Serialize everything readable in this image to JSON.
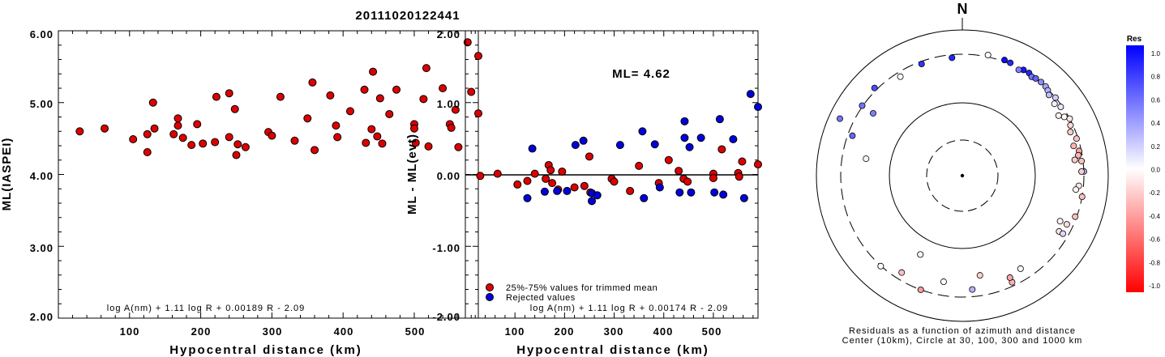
{
  "title": "20111020122441",
  "chart_data": [
    {
      "type": "scatter",
      "xlabel": "Hypocentral distance (km)",
      "ylabel": "ML(IASPEI)",
      "xlim": [
        0,
        590
      ],
      "ylim": [
        2.0,
        6.0
      ],
      "xticks": [
        "100",
        "200",
        "300",
        "400",
        "500"
      ],
      "yticks": [
        "2.00",
        "3.00",
        "4.00",
        "5.00",
        "6.00"
      ],
      "formula": "log A(nm) + 1.11 log R + 0.00189 R - 2.09",
      "point_color": "#dd0000",
      "points": [
        [
          30,
          4.6
        ],
        [
          65,
          4.64
        ],
        [
          105,
          4.49
        ],
        [
          125,
          4.31
        ],
        [
          125,
          4.56
        ],
        [
          133,
          5.0
        ],
        [
          135,
          4.64
        ],
        [
          162,
          4.56
        ],
        [
          168,
          4.68
        ],
        [
          168,
          4.78
        ],
        [
          175,
          4.51
        ],
        [
          187,
          4.41
        ],
        [
          195,
          4.7
        ],
        [
          203,
          4.43
        ],
        [
          220,
          4.45
        ],
        [
          222,
          5.08
        ],
        [
          240,
          5.13
        ],
        [
          240,
          4.52
        ],
        [
          248,
          4.91
        ],
        [
          250,
          4.27
        ],
        [
          252,
          4.42
        ],
        [
          263,
          4.38
        ],
        [
          295,
          4.59
        ],
        [
          300,
          4.54
        ],
        [
          312,
          5.08
        ],
        [
          332,
          4.47
        ],
        [
          350,
          4.78
        ],
        [
          357,
          5.28
        ],
        [
          360,
          4.34
        ],
        [
          382,
          5.1
        ],
        [
          390,
          4.68
        ],
        [
          392,
          4.52
        ],
        [
          410,
          4.88
        ],
        [
          430,
          5.18
        ],
        [
          432,
          4.44
        ],
        [
          440,
          4.63
        ],
        [
          442,
          5.43
        ],
        [
          448,
          4.53
        ],
        [
          452,
          5.06
        ],
        [
          455,
          4.43
        ],
        [
          465,
          4.84
        ],
        [
          475,
          5.18
        ],
        [
          500,
          4.7
        ],
        [
          500,
          4.64
        ],
        [
          502,
          4.44
        ],
        [
          513,
          5.05
        ],
        [
          517,
          5.48
        ],
        [
          520,
          4.39
        ],
        [
          540,
          5.2
        ],
        [
          550,
          4.7
        ],
        [
          552,
          4.65
        ],
        [
          558,
          4.9
        ],
        [
          562,
          4.38
        ],
        [
          575,
          5.84
        ],
        [
          580,
          5.15
        ],
        [
          590,
          5.65
        ],
        [
          590,
          4.85
        ]
      ]
    },
    {
      "type": "scatter",
      "xlabel": "Hypocentral distance (km)",
      "ylabel": "ML - ML(evt)",
      "xlim": [
        0,
        590
      ],
      "ylim": [
        -2.0,
        2.0
      ],
      "xticks": [
        "100",
        "200",
        "300",
        "400",
        "500"
      ],
      "yticks": [
        "-2.00",
        "-1.00",
        "0.00",
        "1.00",
        "2.00"
      ],
      "annotation": "ML= 4.62",
      "formula": "log A(nm) + 1.11 log R + 0.00174 R - 2.09",
      "legend_placement": "bottom-left",
      "series": [
        {
          "name": "25%-75% values for trimmed mean",
          "color": "#dd0000",
          "points": [
            [
              30,
              -0.02
            ],
            [
              65,
              0.01
            ],
            [
              105,
              -0.14
            ],
            [
              125,
              -0.09
            ],
            [
              140,
              0.01
            ],
            [
              162,
              -0.06
            ],
            [
              168,
              0.13
            ],
            [
              172,
              0.06
            ],
            [
              175,
              -0.12
            ],
            [
              187,
              -0.21
            ],
            [
              195,
              0.04
            ],
            [
              220,
              -0.18
            ],
            [
              240,
              -0.16
            ],
            [
              250,
              0.25
            ],
            [
              252,
              -0.25
            ],
            [
              295,
              -0.06
            ],
            [
              300,
              -0.1
            ],
            [
              332,
              -0.23
            ],
            [
              350,
              0.12
            ],
            [
              390,
              -0.12
            ],
            [
              410,
              0.2
            ],
            [
              430,
              0.05
            ],
            [
              440,
              -0.06
            ],
            [
              448,
              -0.1
            ],
            [
              500,
              0.01
            ],
            [
              500,
              -0.05
            ],
            [
              517,
              0.35
            ],
            [
              550,
              0.02
            ],
            [
              552,
              -0.03
            ],
            [
              558,
              0.18
            ],
            [
              590,
              0.14
            ]
          ]
        },
        {
          "name": "Rejected values",
          "color": "#0000dd",
          "points": [
            [
              125,
              -0.33
            ],
            [
              135,
              0.36
            ],
            [
              160,
              -0.24
            ],
            [
              185,
              -0.23
            ],
            [
              205,
              -0.23
            ],
            [
              222,
              0.41
            ],
            [
              238,
              0.47
            ],
            [
              255,
              -0.26
            ],
            [
              255,
              -0.37
            ],
            [
              266,
              -0.29
            ],
            [
              312,
              0.41
            ],
            [
              357,
              0.6
            ],
            [
              360,
              -0.33
            ],
            [
              382,
              0.42
            ],
            [
              392,
              -0.18
            ],
            [
              432,
              -0.25
            ],
            [
              442,
              0.74
            ],
            [
              442,
              0.51
            ],
            [
              452,
              0.38
            ],
            [
              455,
              -0.25
            ],
            [
              475,
              0.51
            ],
            [
              502,
              -0.25
            ],
            [
              513,
              0.77
            ],
            [
              520,
              -0.28
            ],
            [
              540,
              0.49
            ],
            [
              562,
              -0.33
            ],
            [
              575,
              1.12
            ],
            [
              590,
              0.94
            ]
          ]
        }
      ]
    },
    {
      "type": "scatter",
      "north_label": "N",
      "caption_line1": "Residuals as a function of azimuth and distance",
      "caption_line2": "Center (10km), Circle at 30, 100, 300 and 1000 km",
      "colorbar_title": "Res",
      "colorbar_ticks": [
        "1.0",
        "0.8",
        "0.6",
        "0.4",
        "0.2",
        "0.0",
        "-0.2",
        "-0.4",
        "-0.6",
        "-0.8",
        "-1.0"
      ],
      "points": [
        [
          12,
          330,
          0.02
        ],
        [
          328,
          270,
          -0.02
        ],
        [
          208,
          145,
          0.02
        ],
        [
          170,
          190,
          -0.18
        ],
        [
          280,
          175,
          0.05
        ],
        [
          305,
          310,
          0.55
        ],
        [
          305,
          225,
          0.5
        ],
        [
          20,
          325,
          0.95
        ],
        [
          23,
          318,
          0.85
        ],
        [
          30,
          310,
          0.9
        ],
        [
          33,
          315,
          0.85
        ],
        [
          28,
          290,
          0.5
        ],
        [
          35,
          295,
          0.55
        ],
        [
          37,
          305,
          0.6
        ],
        [
          40,
          312,
          0.45
        ],
        [
          43,
          308,
          0.35
        ],
        [
          45,
          295,
          0.3
        ],
        [
          47,
          280,
          0.25
        ],
        [
          50,
          300,
          0.2
        ],
        [
          55,
          290,
          0.1
        ],
        [
          52,
          270,
          0.05
        ],
        [
          60,
          275,
          0.0
        ],
        [
          58,
          250,
          -0.05
        ],
        [
          62,
          300,
          -0.1
        ],
        [
          65,
          285,
          -0.15
        ],
        [
          68,
          268,
          -0.2
        ],
        [
          72,
          290,
          -0.25
        ],
        [
          75,
          260,
          -0.3
        ],
        [
          78,
          285,
          -0.35
        ],
        [
          80,
          275,
          -0.3
        ],
        [
          83,
          290,
          -0.25
        ],
        [
          88,
          300,
          0.3
        ],
        [
          88,
          285,
          -0.2
        ],
        [
          100,
          300,
          -0.25
        ],
        [
          95,
          270,
          -0.1
        ],
        [
          97,
          255,
          -0.05
        ],
        [
          110,
          290,
          -0.25
        ],
        [
          115,
          260,
          -0.15
        ],
        [
          115,
          220,
          -0.05
        ],
        [
          120,
          240,
          -0.1
        ],
        [
          82,
          250,
          -0.2
        ],
        [
          120,
          265,
          0.15
        ],
        [
          155,
          275,
          -0.3
        ],
        [
          155,
          245,
          -0.35
        ],
        [
          200,
          300,
          -0.4
        ],
        [
          175,
          255,
          0.3
        ],
        [
          190,
          220,
          0.0
        ],
        [
          148,
          230,
          0.0
        ],
        [
          222,
          305,
          0.0
        ],
        [
          212,
          255,
          -0.25
        ],
        [
          295,
          585,
          0.55
        ],
        [
          315,
          340,
          0.7
        ],
        [
          290,
          270,
          0.6
        ],
        [
          340,
          283,
          0.8
        ],
        [
          355,
          280,
          0.85
        ]
      ]
    }
  ]
}
